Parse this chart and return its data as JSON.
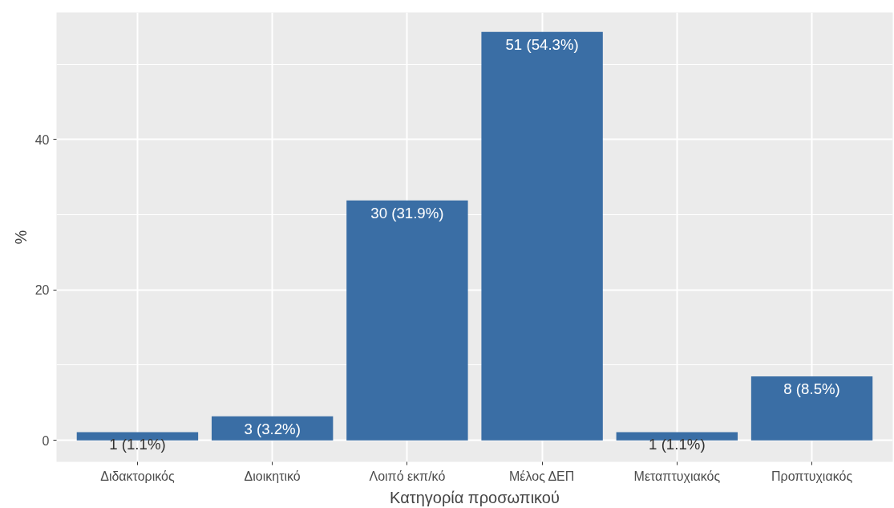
{
  "chart_data": {
    "type": "bar",
    "xlabel": "Κατηγορία προσωπικού",
    "ylabel": "%",
    "categories": [
      "Διδακτορικός",
      "Διοικητικό",
      "Λοιπό εκπ/κό",
      "Μέλος ΔΕΠ",
      "Μεταπτυχιακός",
      "Προπτυχιακός"
    ],
    "values": [
      1.1,
      3.2,
      31.9,
      54.3,
      1.1,
      8.5
    ],
    "value_labels": [
      "1 (1.1%)",
      "3 (3.2%)",
      "30 (31.9%)",
      "51 (54.3%)",
      "1 (1.1%)",
      "8 (8.5%)"
    ],
    "color": "#3a6ea5",
    "ylim": [
      -2.86,
      56.9
    ],
    "yticks": [
      0,
      20,
      40
    ],
    "grid": true
  }
}
